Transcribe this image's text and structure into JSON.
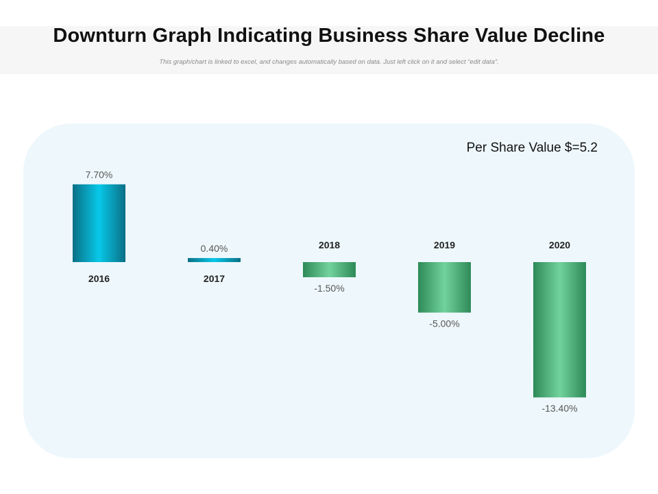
{
  "title": "Downturn Graph Indicating Business Share Value Decline",
  "subtitle": "This graph/chart is linked to excel, and changes automatically based on data. Just left click on it and select “edit data”.",
  "note": "Per Share Value $=5.2",
  "colors": {
    "positive_dark": "#0a6f86",
    "positive_light": "#08c8e8",
    "negative_dark": "#2e8a58",
    "negative_light": "#72d29c",
    "panel": "#eef8fc"
  },
  "chart_data": {
    "type": "bar",
    "categories": [
      "2016",
      "2017",
      "2018",
      "2019",
      "2020"
    ],
    "values": [
      7.7,
      0.4,
      -1.5,
      -5.0,
      -13.4
    ],
    "value_labels": [
      "7.70%",
      "0.40%",
      "-1.50%",
      "-5.00%",
      "-13.40%"
    ],
    "ylim": [
      -13.4,
      7.7
    ],
    "grid": false,
    "legend": "none",
    "xlabel": "",
    "ylabel": "",
    "title": "Downturn Graph Indicating Business Share Value Decline"
  }
}
